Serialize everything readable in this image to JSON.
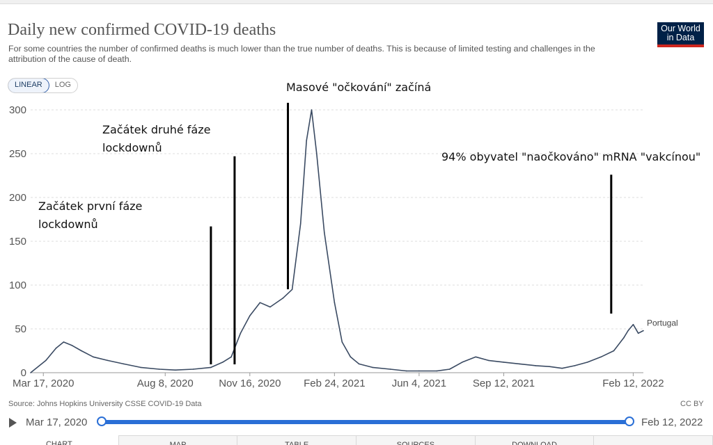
{
  "header": {
    "title": "Daily new confirmed COVID-19 deaths",
    "subtitle": "For some countries the number of confirmed deaths is much lower than the true number of deaths. This is because of limited testing and challenges in the attribution of the cause of death.",
    "logo_line1": "Our World",
    "logo_line2": "in Data"
  },
  "scale_toggle": {
    "linear": "LINEAR",
    "log": "LOG",
    "selected": "LINEAR"
  },
  "chart_data": {
    "type": "line",
    "title": "Daily new confirmed COVID-19 deaths",
    "ylim": [
      0,
      300
    ],
    "yticks": [
      0,
      50,
      100,
      150,
      200,
      250,
      300
    ],
    "xticks": [
      "Mar 17, 2020",
      "Aug 8, 2020",
      "Nov 16, 2020",
      "Feb 24, 2021",
      "Jun 4, 2021",
      "Sep 12, 2021",
      "Feb 12, 2022"
    ],
    "xlim": [
      "2020-03-02",
      "2022-02-24"
    ],
    "grid": "horizontal dashed",
    "series": [
      {
        "name": "Portugal",
        "color": "#3a4a62",
        "x": [
          "2020-03-02",
          "2020-03-20",
          "2020-04-01",
          "2020-04-10",
          "2020-04-20",
          "2020-05-01",
          "2020-05-15",
          "2020-06-01",
          "2020-06-20",
          "2020-07-10",
          "2020-08-01",
          "2020-08-20",
          "2020-09-10",
          "2020-10-01",
          "2020-10-15",
          "2020-10-25",
          "2020-11-05",
          "2020-11-16",
          "2020-11-28",
          "2020-12-10",
          "2020-12-25",
          "2021-01-05",
          "2021-01-15",
          "2021-01-22",
          "2021-01-28",
          "2021-02-03",
          "2021-02-12",
          "2021-02-24",
          "2021-03-05",
          "2021-03-15",
          "2021-03-25",
          "2021-04-10",
          "2021-05-01",
          "2021-05-20",
          "2021-06-04",
          "2021-06-25",
          "2021-07-10",
          "2021-07-25",
          "2021-08-10",
          "2021-08-25",
          "2021-09-12",
          "2021-10-01",
          "2021-10-20",
          "2021-11-05",
          "2021-11-20",
          "2021-12-05",
          "2021-12-20",
          "2022-01-05",
          "2022-01-20",
          "2022-02-01",
          "2022-02-06",
          "2022-02-12",
          "2022-02-18",
          "2022-02-24"
        ],
        "values": [
          0,
          14,
          28,
          35,
          31,
          25,
          18,
          14,
          10,
          6,
          4,
          3,
          4,
          6,
          12,
          18,
          45,
          65,
          80,
          75,
          85,
          95,
          170,
          265,
          300,
          250,
          160,
          80,
          35,
          18,
          10,
          6,
          4,
          2,
          2,
          2,
          4,
          12,
          18,
          14,
          12,
          10,
          8,
          7,
          5,
          8,
          12,
          18,
          25,
          40,
          48,
          55,
          45,
          48
        ]
      }
    ],
    "annotations": [
      {
        "text_line1": "Začátek první fáze",
        "text_line2": "lockdownů",
        "x": "2020-10-01",
        "y_top": 167
      },
      {
        "text_line1": "Začátek druhé fáze",
        "text_line2": "lockdownů",
        "x": "2020-10-29",
        "y_top": 247
      },
      {
        "text_line1": "Masové \"očkování\" začíná",
        "text_line2": "",
        "x": "2020-12-31",
        "y_top": 308
      },
      {
        "text_line1": "94% obyvatel \"naočkováno\" mRNA \"vakcínou\"",
        "text_line2": "",
        "x": "2022-01-17",
        "y_top": 226
      }
    ]
  },
  "footer": {
    "source": "Source: Johns Hopkins University CSSE COVID-19 Data",
    "license": "CC BY"
  },
  "timeline": {
    "start": "Mar 17, 2020",
    "end": "Feb 12, 2022",
    "start_fraction": 0.0,
    "end_fraction": 1.0
  },
  "tabs": [
    "CHART",
    "MAP",
    "TABLE",
    "SOURCES",
    "DOWNLOAD",
    ""
  ]
}
